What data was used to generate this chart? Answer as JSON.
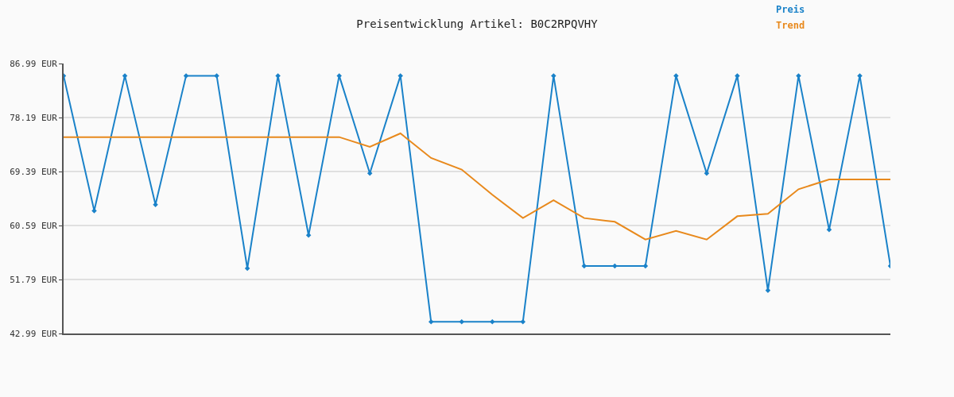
{
  "chart_data": {
    "type": "line",
    "title": "Preisentwicklung Artikel: B0C2RPQVHY",
    "categories": [
      null,
      null,
      null,
      null,
      null,
      null,
      null,
      null,
      null,
      null,
      null,
      null,
      null,
      null,
      null,
      null,
      null,
      null,
      null,
      null,
      null,
      null,
      null,
      null,
      null,
      null,
      null,
      null
    ],
    "series": [
      {
        "name": "Preis",
        "color": "#1a82c9",
        "marker": "diamond",
        "values": [
          85.0,
          63.0,
          85.0,
          64.0,
          85.0,
          85.0,
          53.6,
          85.0,
          59.0,
          85.0,
          69.1,
          85.0,
          44.9,
          44.9,
          44.9,
          44.9,
          85.0,
          54.0,
          54.0,
          54.0,
          85.0,
          69.1,
          85.0,
          50.0,
          85.0,
          59.9,
          85.0,
          54.0
        ]
      },
      {
        "name": "Trend",
        "color": "#e8891c",
        "marker": "none",
        "values": [
          75.0,
          75.0,
          75.0,
          75.0,
          75.0,
          75.0,
          75.0,
          75.0,
          75.0,
          75.0,
          73.4,
          75.6,
          71.6,
          69.7,
          65.6,
          61.8,
          64.7,
          61.8,
          61.2,
          58.3,
          59.7,
          58.3,
          62.1,
          62.5,
          66.5,
          68.1,
          68.1,
          68.1
        ]
      }
    ],
    "ylim": [
      42.99,
      86.99
    ],
    "yticks": [
      {
        "value": 42.99,
        "label": "42.99 EUR"
      },
      {
        "value": 51.79,
        "label": "51.79 EUR"
      },
      {
        "value": 60.59,
        "label": "60.59 EUR"
      },
      {
        "value": 69.39,
        "label": "69.39 EUR"
      },
      {
        "value": 78.19,
        "label": "78.19 EUR"
      },
      {
        "value": 86.99,
        "label": "86.99 EUR"
      }
    ],
    "grid": "y",
    "legend": "top right",
    "tick_labels": "y",
    "line_style": "solid"
  }
}
